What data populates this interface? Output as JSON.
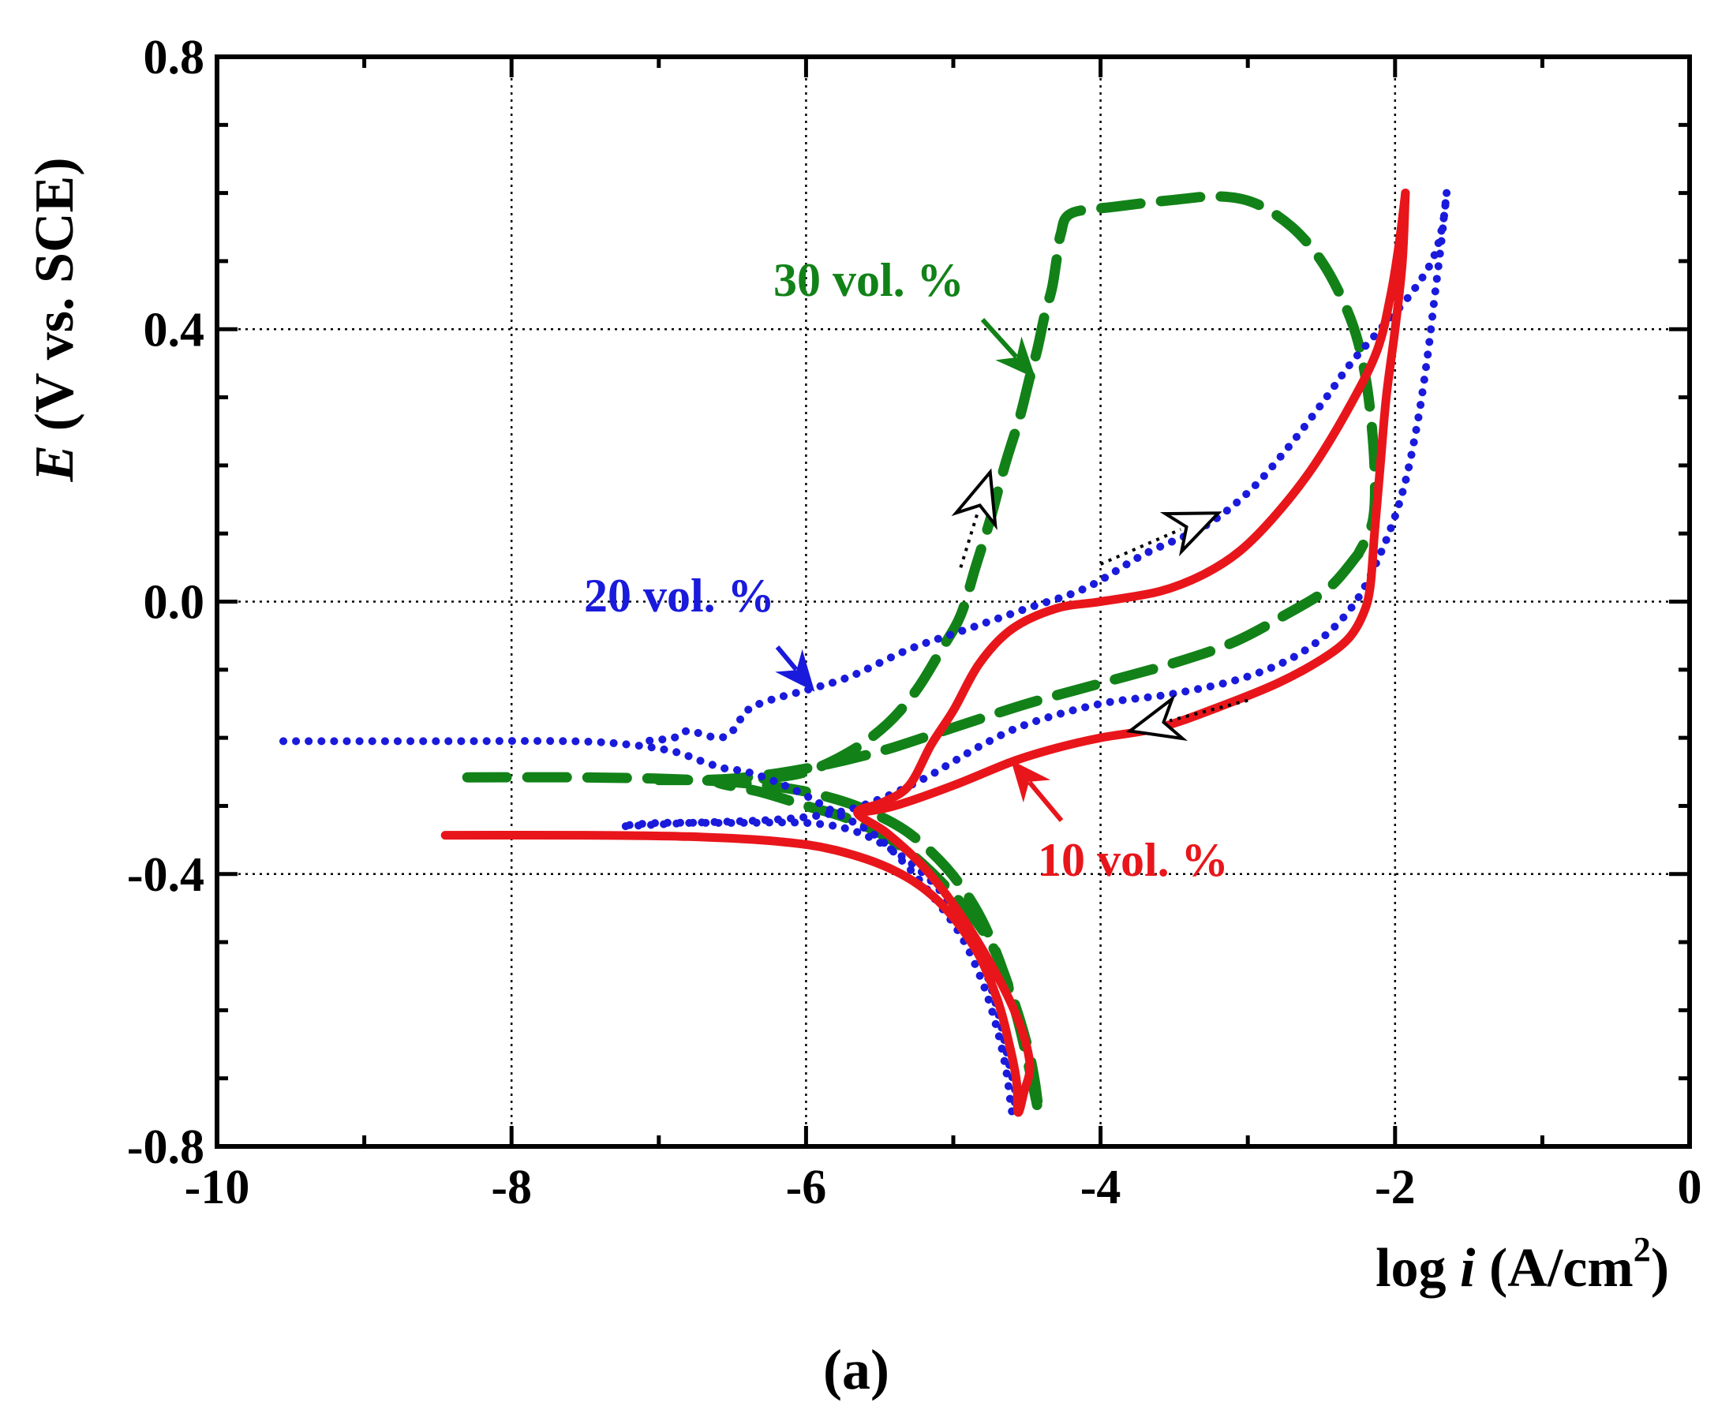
{
  "chart_data": {
    "type": "line",
    "title": "",
    "caption": "(a)",
    "xlabel": {
      "prefix": "log ",
      "italic": "i",
      "suffix": " (A/cm",
      "sup": "2",
      "close": ")"
    },
    "ylabel": {
      "italic": "E",
      "rest": " (V vs. SCE)"
    },
    "xlim": [
      -10,
      0
    ],
    "ylim": [
      -0.8,
      0.8
    ],
    "xticks": [
      -10,
      -8,
      -6,
      -4,
      -2,
      0
    ],
    "xtick_labels": [
      "-10",
      "-8",
      "-6",
      "-4",
      "-2",
      "0"
    ],
    "yticks": [
      -0.8,
      -0.4,
      0.0,
      0.4,
      0.8
    ],
    "ytick_labels": [
      "-0.8",
      "-0.4",
      "0.0",
      "0.4",
      "0.8"
    ],
    "grid": true,
    "series": [
      {
        "name": "10 vol. %",
        "color": "#e8161b",
        "style": "solid",
        "forward": [
          [
            -8.45,
            -0.343
          ],
          [
            -7.5,
            -0.343
          ],
          [
            -6.8,
            -0.345
          ],
          [
            -6.2,
            -0.352
          ],
          [
            -5.8,
            -0.365
          ],
          [
            -5.4,
            -0.395
          ],
          [
            -5.1,
            -0.44
          ],
          [
            -4.85,
            -0.51
          ],
          [
            -4.7,
            -0.585
          ],
          [
            -4.62,
            -0.65
          ],
          [
            -4.57,
            -0.705
          ],
          [
            -4.56,
            -0.75
          ],
          [
            -4.52,
            -0.72
          ],
          [
            -4.48,
            -0.68
          ],
          [
            -4.55,
            -0.62
          ],
          [
            -4.7,
            -0.55
          ],
          [
            -4.95,
            -0.46
          ],
          [
            -5.2,
            -0.39
          ],
          [
            -5.45,
            -0.34
          ],
          [
            -5.65,
            -0.31
          ],
          [
            -5.48,
            -0.295
          ],
          [
            -5.3,
            -0.27
          ],
          [
            -5.15,
            -0.21
          ],
          [
            -5.0,
            -0.16
          ],
          [
            -4.82,
            -0.09
          ],
          [
            -4.6,
            -0.04
          ],
          [
            -4.3,
            -0.01
          ],
          [
            -4.0,
            0.0
          ],
          [
            -3.6,
            0.015
          ],
          [
            -3.3,
            0.04
          ],
          [
            -3.05,
            0.075
          ],
          [
            -2.8,
            0.13
          ],
          [
            -2.55,
            0.2
          ],
          [
            -2.3,
            0.29
          ],
          [
            -2.12,
            0.37
          ],
          [
            -2.03,
            0.45
          ],
          [
            -1.97,
            0.53
          ],
          [
            -1.93,
            0.6
          ]
        ],
        "reverse": [
          [
            -1.93,
            0.6
          ],
          [
            -1.95,
            0.5
          ],
          [
            -2.0,
            0.4
          ],
          [
            -2.06,
            0.3
          ],
          [
            -2.1,
            0.2
          ],
          [
            -2.14,
            0.1
          ],
          [
            -2.17,
            0.02
          ],
          [
            -2.22,
            -0.02
          ],
          [
            -2.32,
            -0.055
          ],
          [
            -2.5,
            -0.085
          ],
          [
            -2.8,
            -0.12
          ],
          [
            -3.2,
            -0.155
          ],
          [
            -3.6,
            -0.185
          ],
          [
            -4.0,
            -0.2
          ],
          [
            -4.3,
            -0.215
          ],
          [
            -4.6,
            -0.235
          ],
          [
            -5.0,
            -0.27
          ],
          [
            -5.4,
            -0.3
          ],
          [
            -5.65,
            -0.31
          ]
        ]
      },
      {
        "name": "20 vol. %",
        "color": "#1a1adc",
        "style": "dotted",
        "forward": [
          [
            -9.55,
            -0.205
          ],
          [
            -8.5,
            -0.205
          ],
          [
            -7.6,
            -0.205
          ],
          [
            -7.2,
            -0.21
          ],
          [
            -6.9,
            -0.22
          ],
          [
            -6.7,
            -0.235
          ],
          [
            -6.55,
            -0.245
          ],
          [
            -6.4,
            -0.25
          ],
          [
            -6.2,
            -0.265
          ],
          [
            -6.0,
            -0.285
          ],
          [
            -5.8,
            -0.31
          ],
          [
            -5.55,
            -0.34
          ],
          [
            -5.35,
            -0.38
          ],
          [
            -5.15,
            -0.43
          ],
          [
            -4.95,
            -0.49
          ],
          [
            -4.8,
            -0.56
          ],
          [
            -4.7,
            -0.63
          ],
          [
            -4.64,
            -0.69
          ],
          [
            -4.6,
            -0.75
          ],
          [
            -4.58,
            -0.72
          ],
          [
            -4.62,
            -0.68
          ],
          [
            -4.7,
            -0.6
          ],
          [
            -4.82,
            -0.52
          ],
          [
            -5.0,
            -0.45
          ],
          [
            -5.2,
            -0.4
          ],
          [
            -5.45,
            -0.36
          ],
          [
            -5.7,
            -0.335
          ],
          [
            -6.0,
            -0.325
          ],
          [
            -6.5,
            -0.325
          ],
          [
            -7.0,
            -0.325
          ],
          [
            -7.25,
            -0.33
          ],
          [
            -6.8,
            -0.325
          ],
          [
            -6.2,
            -0.32
          ],
          [
            -5.8,
            -0.31
          ],
          [
            -5.5,
            -0.29
          ],
          [
            -5.2,
            -0.26
          ],
          [
            -5.0,
            -0.235
          ],
          [
            -4.8,
            -0.21
          ],
          [
            -4.5,
            -0.18
          ],
          [
            -4.0,
            -0.15
          ],
          [
            -3.5,
            -0.135
          ],
          [
            -3.0,
            -0.11
          ],
          [
            -2.6,
            -0.07
          ],
          [
            -2.3,
            -0.01
          ],
          [
            -2.1,
            0.07
          ],
          [
            -1.95,
            0.16
          ],
          [
            -1.85,
            0.26
          ],
          [
            -1.78,
            0.36
          ],
          [
            -1.73,
            0.45
          ],
          [
            -1.69,
            0.52
          ],
          [
            -1.66,
            0.58
          ],
          [
            -1.65,
            0.6
          ]
        ],
        "reverse": [
          [
            -1.65,
            0.6
          ],
          [
            -1.68,
            0.55
          ],
          [
            -1.75,
            0.5
          ],
          [
            -1.9,
            0.45
          ],
          [
            -2.1,
            0.4
          ],
          [
            -2.3,
            0.35
          ],
          [
            -2.5,
            0.29
          ],
          [
            -2.75,
            0.22
          ],
          [
            -3.0,
            0.16
          ],
          [
            -3.3,
            0.11
          ],
          [
            -3.7,
            0.07
          ],
          [
            -4.1,
            0.02
          ],
          [
            -4.5,
            -0.01
          ],
          [
            -4.9,
            -0.04
          ],
          [
            -5.3,
            -0.07
          ],
          [
            -5.7,
            -0.11
          ],
          [
            -6.0,
            -0.13
          ],
          [
            -6.25,
            -0.145
          ],
          [
            -6.4,
            -0.16
          ],
          [
            -6.5,
            -0.19
          ],
          [
            -6.6,
            -0.2
          ],
          [
            -6.8,
            -0.19
          ],
          [
            -6.9,
            -0.2
          ],
          [
            -7.1,
            -0.205
          ]
        ]
      },
      {
        "name": "30 vol. %",
        "color": "#128218",
        "style": "dashed",
        "forward": [
          [
            -8.3,
            -0.258
          ],
          [
            -7.6,
            -0.258
          ],
          [
            -7.0,
            -0.26
          ],
          [
            -6.5,
            -0.265
          ],
          [
            -6.1,
            -0.275
          ],
          [
            -5.8,
            -0.29
          ],
          [
            -5.55,
            -0.31
          ],
          [
            -5.3,
            -0.34
          ],
          [
            -5.05,
            -0.39
          ],
          [
            -4.85,
            -0.45
          ],
          [
            -4.7,
            -0.52
          ],
          [
            -4.58,
            -0.6
          ],
          [
            -4.5,
            -0.67
          ],
          [
            -4.44,
            -0.73
          ],
          [
            -4.42,
            -0.75
          ],
          [
            -4.45,
            -0.7
          ],
          [
            -4.5,
            -0.65
          ],
          [
            -4.6,
            -0.58
          ],
          [
            -4.75,
            -0.5
          ],
          [
            -5.0,
            -0.43
          ],
          [
            -5.35,
            -0.36
          ],
          [
            -5.7,
            -0.32
          ],
          [
            -6.0,
            -0.3
          ],
          [
            -6.3,
            -0.28
          ],
          [
            -6.6,
            -0.265
          ],
          [
            -6.3,
            -0.26
          ],
          [
            -6.0,
            -0.25
          ],
          [
            -5.7,
            -0.22
          ],
          [
            -5.45,
            -0.18
          ],
          [
            -5.25,
            -0.13
          ],
          [
            -5.08,
            -0.07
          ],
          [
            -4.95,
            -0.02
          ],
          [
            -4.85,
            0.05
          ],
          [
            -4.75,
            0.12
          ],
          [
            -4.65,
            0.2
          ],
          [
            -4.55,
            0.27
          ],
          [
            -4.48,
            0.33
          ],
          [
            -4.43,
            0.37
          ],
          [
            -4.38,
            0.42
          ],
          [
            -4.33,
            0.46
          ],
          [
            -4.3,
            0.5
          ],
          [
            -4.27,
            0.54
          ],
          [
            -4.2,
            0.57
          ],
          [
            -3.9,
            0.58
          ],
          [
            -3.5,
            0.59
          ],
          [
            -3.2,
            0.595
          ],
          [
            -2.95,
            0.585
          ],
          [
            -2.7,
            0.55
          ],
          [
            -2.5,
            0.5
          ],
          [
            -2.35,
            0.44
          ],
          [
            -2.25,
            0.38
          ],
          [
            -2.18,
            0.3
          ],
          [
            -2.14,
            0.2
          ],
          [
            -2.15,
            0.12
          ],
          [
            -2.25,
            0.07
          ]
        ],
        "reverse": [
          [
            -2.25,
            0.07
          ],
          [
            -2.45,
            0.02
          ],
          [
            -2.75,
            -0.02
          ],
          [
            -3.1,
            -0.06
          ],
          [
            -3.5,
            -0.09
          ],
          [
            -4.0,
            -0.12
          ],
          [
            -4.5,
            -0.15
          ],
          [
            -5.0,
            -0.185
          ],
          [
            -5.5,
            -0.22
          ],
          [
            -6.0,
            -0.245
          ],
          [
            -6.5,
            -0.26
          ],
          [
            -7.0,
            -0.262
          ]
        ]
      }
    ],
    "annotations": [
      {
        "text": "30 vol. %",
        "color": "#128218",
        "points_to": [
          -4.45,
          0.33
        ]
      },
      {
        "text": "20 vol. %",
        "color": "#1a1adc",
        "points_to": [
          -5.95,
          -0.13
        ]
      },
      {
        "text": "10 vol. %",
        "color": "#e8161b",
        "points_to": [
          -4.6,
          -0.235
        ]
      }
    ],
    "scan_direction_arrows": [
      {
        "from": [
          -4.95,
          0.05
        ],
        "to": [
          -4.75,
          0.19
        ]
      },
      {
        "from": [
          -4.0,
          0.055
        ],
        "to": [
          -3.2,
          0.13
        ]
      },
      {
        "from": [
          -3.0,
          -0.145
        ],
        "to": [
          -3.8,
          -0.19
        ]
      }
    ]
  }
}
